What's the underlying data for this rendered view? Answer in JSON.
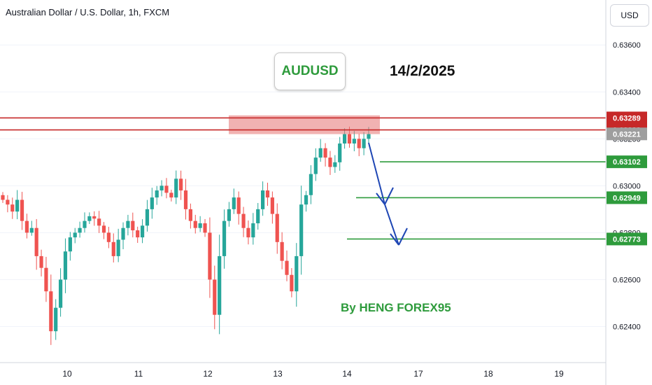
{
  "header": {
    "symbol_title": "Australian Dollar / U.S. Dollar, 1h, FXCM",
    "currency_button": "USD"
  },
  "annotations": {
    "pair_label": "AUDUSD",
    "date_label": "14/2/2025",
    "author_label": "By HENG FOREX95"
  },
  "colors": {
    "up": "#26a69a",
    "down": "#ef5350",
    "resistance": "#c62828",
    "zone": "#e57373",
    "target": "#2e9b3c",
    "arrow": "#1e46b4",
    "current": "#9e9e9e"
  },
  "chart_data": {
    "type": "candlestick",
    "title": "Australian Dollar / U.S. Dollar, 1h, FXCM",
    "ylim": [
      0.623,
      0.6372
    ],
    "y_ticks": [
      "0.63600",
      "0.63400",
      "0.63200",
      "0.63000",
      "0.62800",
      "0.62600",
      "0.62400"
    ],
    "x_ticks": [
      "10",
      "11",
      "12",
      "13",
      "14",
      "17",
      "18",
      "19"
    ],
    "price_lines": [
      {
        "value": "0.63289",
        "kind": "resistance"
      },
      {
        "value": "0.63238",
        "kind": "resistance"
      },
      {
        "value": "0.63221",
        "kind": "current"
      },
      {
        "value": "0.63102",
        "kind": "target"
      },
      {
        "value": "0.62949",
        "kind": "target"
      },
      {
        "value": "0.62773",
        "kind": "target"
      }
    ],
    "resistance_zone": [
      0.6322,
      0.633
    ],
    "close_path": [
      0.6294,
      0.6292,
      0.6289,
      0.6294,
      0.6285,
      0.628,
      0.6282,
      0.627,
      0.6265,
      0.6255,
      0.6238,
      0.6248,
      0.626,
      0.6272,
      0.6278,
      0.628,
      0.6282,
      0.6285,
      0.6287,
      0.6286,
      0.6283,
      0.628,
      0.6276,
      0.627,
      0.6277,
      0.6282,
      0.6285,
      0.6281,
      0.6278,
      0.6283,
      0.629,
      0.6295,
      0.6298,
      0.63,
      0.6297,
      0.6295,
      0.6303,
      0.6298,
      0.629,
      0.6285,
      0.6282,
      0.6284,
      0.628,
      0.626,
      0.6245,
      0.627,
      0.6285,
      0.629,
      0.6295,
      0.6288,
      0.6282,
      0.6278,
      0.6284,
      0.629,
      0.6298,
      0.6295,
      0.6288,
      0.6276,
      0.6268,
      0.6262,
      0.6255,
      0.627,
      0.6292,
      0.6296,
      0.6305,
      0.6312,
      0.6316,
      0.6312,
      0.6308,
      0.631,
      0.6318,
      0.6322,
      0.6318,
      0.632,
      0.6316,
      0.632,
      0.6322
    ]
  }
}
